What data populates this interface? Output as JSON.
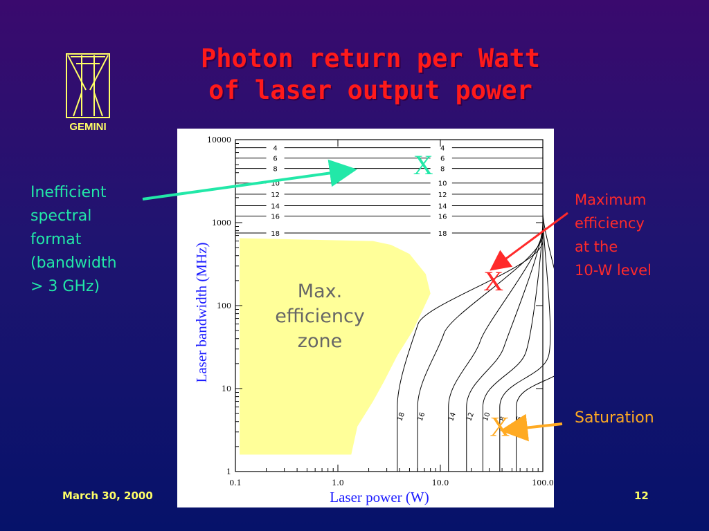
{
  "slide": {
    "title_lines": [
      "Photon return per Watt",
      "of laser output power"
    ],
    "logo_text": "GEMINI",
    "footer_date": "March 30, 2000",
    "page_number": "12"
  },
  "callouts": {
    "inefficient": {
      "lines": [
        "Inefficient",
        "spectral",
        "format",
        "(bandwidth",
        "> 3 GHz)"
      ],
      "color": "#22e8a8"
    },
    "maximum": {
      "lines": [
        "Maximum",
        "efficiency",
        "at the",
        "10-W level"
      ],
      "color": "#ff2a2a"
    },
    "saturation": {
      "lines": [
        "Saturation"
      ],
      "color": "#ffaa22"
    }
  },
  "chart_data": {
    "type": "contour",
    "xlabel": "Laser power (W)",
    "ylabel": "Laser bandwidth (MHz)",
    "x_scale": "log",
    "y_scale": "log",
    "xlim": [
      0.1,
      100
    ],
    "ylim": [
      1,
      10000
    ],
    "x_ticks": [
      "0.1",
      "1.0",
      "10.0",
      "100.0"
    ],
    "y_ticks": [
      "1",
      "10",
      "100",
      "1000",
      "10000"
    ],
    "contour_levels": [
      4,
      6,
      8,
      10,
      12,
      14,
      16,
      18
    ],
    "horizontal_contour_levels_at_high_bandwidth": [
      {
        "level": 4,
        "bandwidth": 8000
      },
      {
        "level": 6,
        "bandwidth": 6000
      },
      {
        "level": 8,
        "bandwidth": 4500
      },
      {
        "level": 10,
        "bandwidth": 3000
      },
      {
        "level": 12,
        "bandwidth": 2200
      },
      {
        "level": 14,
        "bandwidth": 1600
      },
      {
        "level": 16,
        "bandwidth": 1200
      },
      {
        "level": 18,
        "bandwidth": 750
      }
    ],
    "vertical_contour_levels_at_low_bandwidth": [
      {
        "level": 18,
        "power": 3.8
      },
      {
        "level": 16,
        "power": 6.0
      },
      {
        "level": 14,
        "power": 12.0
      },
      {
        "level": 12,
        "power": 18.0
      },
      {
        "level": 10,
        "power": 26.0
      },
      {
        "level": 8,
        "power": 38.0
      },
      {
        "level": 6,
        "power": 55.0
      }
    ],
    "zone": {
      "label_lines": [
        "Max.",
        "efficiency",
        "zone"
      ],
      "fill_color": "#ffff99"
    },
    "markers": [
      {
        "label": "X",
        "power": 6.8,
        "bandwidth": 5000,
        "color": "#22e8a8"
      },
      {
        "label": "X",
        "power": 33,
        "bandwidth": 200,
        "color": "#ff2a2a"
      },
      {
        "label": "X",
        "power": 38,
        "bandwidth": 3.5,
        "color": "#ffaa22"
      }
    ]
  }
}
